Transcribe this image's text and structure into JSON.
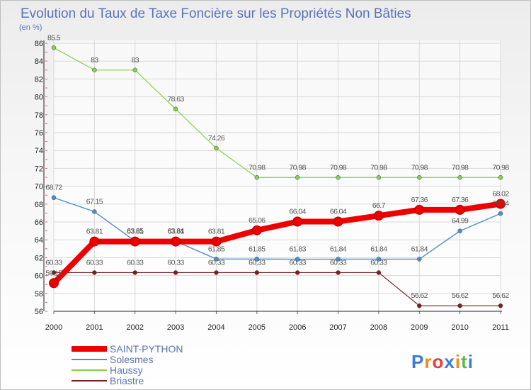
{
  "chart_data": {
    "type": "line",
    "title": "Evolution du Taux de Taxe Foncière sur les Propriétés Non Bâties",
    "unit_label": "(en %)",
    "x": [
      "2000",
      "2001",
      "2002",
      "2003",
      "2004",
      "2005",
      "2006",
      "2007",
      "2008",
      "2009",
      "2010",
      "2011"
    ],
    "yticks": [
      "56",
      "58",
      "60",
      "62",
      "64",
      "66",
      "68",
      "70",
      "72",
      "74",
      "76",
      "78",
      "80",
      "82",
      "84",
      "86"
    ],
    "ylim": [
      56,
      86
    ],
    "grid": true,
    "legend_position": "bottom-left",
    "series": [
      {
        "name": "SAINT-PYTHON",
        "color": "#ee0000",
        "values": [
          59.15,
          63.81,
          63.81,
          63.81,
          63.81,
          65.06,
          66.04,
          66.04,
          66.7,
          67.36,
          67.36,
          68.02
        ],
        "labels": [
          "59.15",
          "63.81",
          "63.81",
          "63.81",
          "63.81",
          "65.06",
          "66.04",
          "66.04",
          "66.7",
          "67.36",
          "67.36",
          "68.02"
        ]
      },
      {
        "name": "Solesmes",
        "color": "#4a8fd0",
        "values": [
          68.72,
          67.15,
          63.85,
          63.84,
          61.85,
          61.85,
          61.83,
          61.84,
          61.84,
          61.84,
          64.99,
          66.94
        ],
        "labels": [
          "68.72",
          "67.15",
          "63.85",
          "63.84",
          "61.85",
          "61.85",
          "61.83",
          "61.84",
          "61.84",
          "61.84",
          "64.99",
          "66.94"
        ]
      },
      {
        "name": "Haussy",
        "color": "#88d04b",
        "values": [
          85.5,
          83,
          83,
          78.63,
          74.26,
          70.98,
          70.98,
          70.98,
          70.98,
          70.98,
          70.98,
          70.98
        ],
        "labels": [
          "85.5",
          "83",
          "83",
          "78.63",
          "74.26",
          "70.98",
          "70.98",
          "70.98",
          "70.98",
          "70.98",
          "70.98",
          "70.98"
        ]
      },
      {
        "name": "Briastre",
        "color": "#7a1f1f",
        "values": [
          60.33,
          60.33,
          60.33,
          60.33,
          60.33,
          60.33,
          60.33,
          60.33,
          60.33,
          56.62,
          56.62,
          56.62
        ],
        "labels": [
          "60.33",
          "60.33",
          "60.33",
          "60.33",
          "60.33",
          "60.33",
          "60.33",
          "60.33",
          "60.33",
          "56.62",
          "56.62",
          "56.62"
        ]
      }
    ]
  },
  "brand": {
    "text": "Proxiti"
  }
}
